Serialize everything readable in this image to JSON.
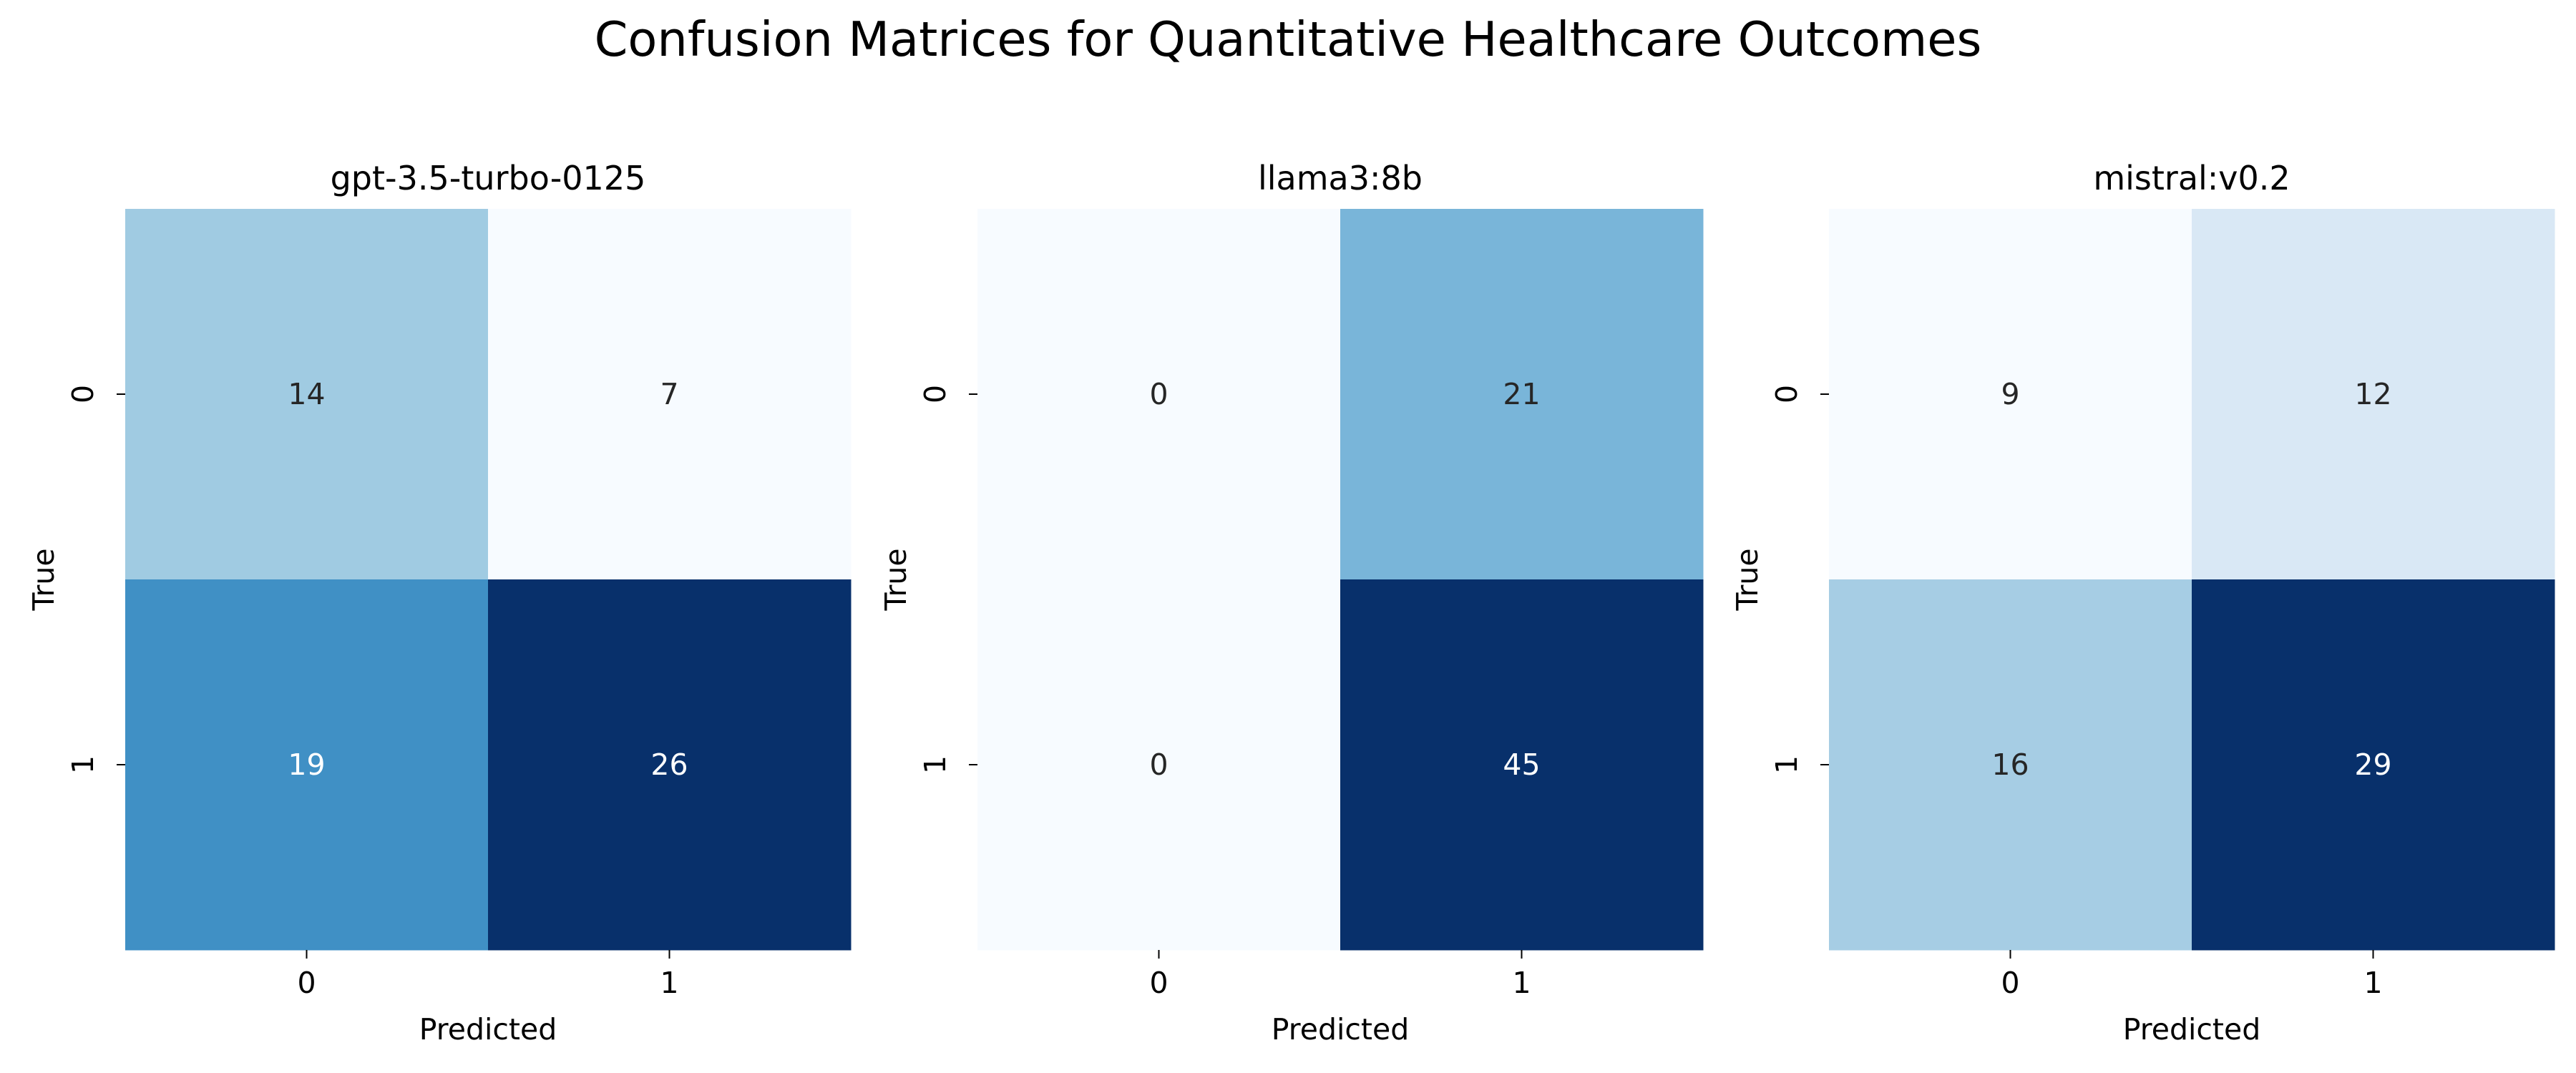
{
  "chart_data": {
    "title": "Confusion Matrices for Quantitative Healthcare Outcomes",
    "colormap": "Blues",
    "colormap_stops": [
      "#f7fbff",
      "#deebf7",
      "#c6dbef",
      "#9ecae1",
      "#6baed6",
      "#4292c6",
      "#2171b5",
      "#08519c",
      "#08306b"
    ],
    "text_color_light": "#ffffff",
    "text_color_dark": "#262626",
    "tick_color": "#000000",
    "panels": [
      {
        "type": "heatmap",
        "title": "gpt-3.5-turbo-0125",
        "xlabel": "Predicted",
        "ylabel": "True",
        "x_categories": [
          "0",
          "1"
        ],
        "y_categories": [
          "0",
          "1"
        ],
        "matrix": [
          [
            14,
            7
          ],
          [
            19,
            26
          ]
        ]
      },
      {
        "type": "heatmap",
        "title": "llama3:8b",
        "xlabel": "Predicted",
        "ylabel": "True",
        "x_categories": [
          "0",
          "1"
        ],
        "y_categories": [
          "0",
          "1"
        ],
        "matrix": [
          [
            0,
            21
          ],
          [
            0,
            45
          ]
        ]
      },
      {
        "type": "heatmap",
        "title": "mistral:v0.2",
        "xlabel": "Predicted",
        "ylabel": "True",
        "x_categories": [
          "0",
          "1"
        ],
        "y_categories": [
          "0",
          "1"
        ],
        "matrix": [
          [
            9,
            12
          ],
          [
            16,
            29
          ]
        ]
      }
    ]
  }
}
